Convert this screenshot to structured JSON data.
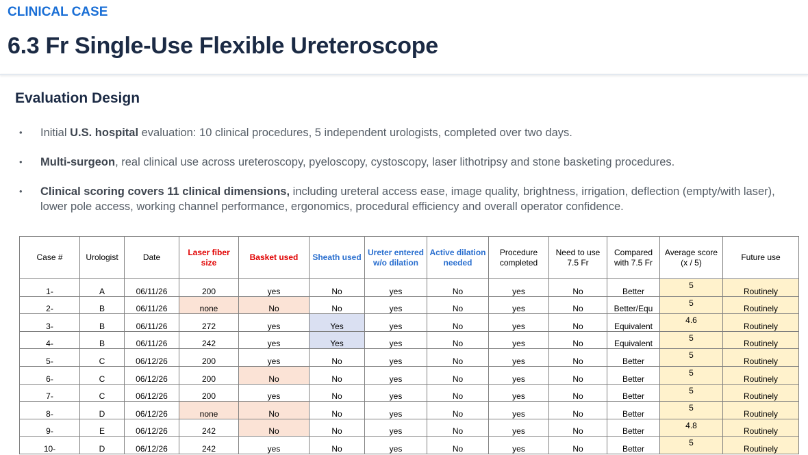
{
  "header": {
    "kicker": "CLINICAL CASE",
    "title": "6.3 Fr Single-Use Flexible Ureteroscope"
  },
  "section": {
    "heading": "Evaluation Design",
    "bullets": [
      [
        {
          "text": "Initial ",
          "bold": false
        },
        {
          "text": "U.S. hospital",
          "bold": true
        },
        {
          "text": " evaluation: 10 clinical procedures, 5 independent urologists, completed over two days.",
          "bold": false
        }
      ],
      [
        {
          "text": "Multi-surgeon",
          "bold": true
        },
        {
          "text": ", real clinical use across ureteroscopy, pyeloscopy, cystoscopy, laser lithotripsy and stone basketing procedures.",
          "bold": false
        }
      ],
      [
        {
          "text": "Clinical scoring covers 11 clinical dimensions,",
          "bold": true
        },
        {
          "text": " including ureteral access ease, image quality, brightness, irrigation, deflection (empty/with laser), lower pole access, working channel performance, ergonomics, procedural efficiency and overall operator confidence.",
          "bold": false
        }
      ]
    ]
  },
  "table": {
    "headers": [
      "Case #",
      "Urologist",
      "Date",
      "Laser fiber size",
      "Basket used",
      "Sheath used",
      "Ureter entered w/o dilation",
      "Active dilation needed",
      "Procedure completed",
      "Need to use 7.5 Fr",
      "Compared with 7.5 Fr",
      "Average score (x / 5)",
      "Future use"
    ],
    "rows": [
      [
        "1-",
        "A",
        "06/11/26",
        "200",
        "yes",
        "No",
        "yes",
        "No",
        "yes",
        "No",
        "Better",
        "5",
        "Routinely"
      ],
      [
        "2-",
        "B",
        "06/11/26",
        "none",
        "No",
        "No",
        "yes",
        "No",
        "yes",
        "No",
        "Better/Equ",
        "5",
        "Routinely"
      ],
      [
        "3-",
        "B",
        "06/11/26",
        "272",
        "yes",
        "Yes",
        "yes",
        "No",
        "yes",
        "No",
        "Equivalent",
        "4.6",
        "Routinely"
      ],
      [
        "4-",
        "B",
        "06/11/26",
        "242",
        "yes",
        "Yes",
        "yes",
        "No",
        "yes",
        "No",
        "Equivalent",
        "5",
        "Routinely"
      ],
      [
        "5-",
        "C",
        "06/12/26",
        "200",
        "yes",
        "No",
        "yes",
        "No",
        "yes",
        "No",
        "Better",
        "5",
        "Routinely"
      ],
      [
        "6-",
        "C",
        "06/12/26",
        "200",
        "No",
        "No",
        "yes",
        "No",
        "yes",
        "No",
        "Better",
        "5",
        "Routinely"
      ],
      [
        "7-",
        "C",
        "06/12/26",
        "200",
        "yes",
        "No",
        "yes",
        "No",
        "yes",
        "No",
        "Better",
        "5",
        "Routinely"
      ],
      [
        "8-",
        "D",
        "06/12/26",
        "none",
        "No",
        "No",
        "yes",
        "No",
        "yes",
        "No",
        "Better",
        "5",
        "Routinely"
      ],
      [
        "9-",
        "E",
        "06/12/26",
        "242",
        "No",
        "No",
        "yes",
        "No",
        "yes",
        "No",
        "Better",
        "4.8",
        "Routinely"
      ],
      [
        "10-",
        "D",
        "06/12/26",
        "242",
        "yes",
        "No",
        "yes",
        "No",
        "yes",
        "No",
        "Better",
        "5",
        "Routinely"
      ]
    ]
  }
}
